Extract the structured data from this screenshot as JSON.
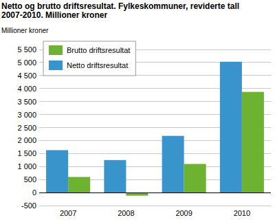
{
  "chart_data": {
    "type": "bar",
    "title": "Netto og brutto driftsresultat. Fylkeskommuner, reviderte tall 2007-2010. Millioner kroner",
    "y_label": "Millioner kroner",
    "categories": [
      "2007",
      "2008",
      "2009",
      "2010"
    ],
    "series": [
      {
        "name": "Netto driftsresultat",
        "color": "#3a94cc",
        "values": [
          1630,
          1250,
          2180,
          5030
        ]
      },
      {
        "name": "Brutto driftsresultat",
        "color": "#6db230",
        "values": [
          600,
          -120,
          1100,
          3870
        ]
      }
    ],
    "ylim": [
      -500,
      5500
    ],
    "yticks": [
      -500,
      0,
      500,
      {
        "value": 1000,
        "label": "1 000"
      },
      {
        "value": 1500,
        "label": "1 500"
      },
      {
        "value": 2000,
        "label": "2 000"
      },
      {
        "value": 2500,
        "label": "2 500"
      },
      {
        "value": 3000,
        "label": "3 000"
      },
      {
        "value": 3500,
        "label": "3 500"
      },
      {
        "value": 4000,
        "label": "4 000"
      },
      {
        "value": 4500,
        "label": "4 500"
      },
      {
        "value": 5000,
        "label": "5 000"
      },
      {
        "value": 5500,
        "label": "5 500"
      }
    ],
    "grid": true,
    "legend": "upper-left"
  }
}
